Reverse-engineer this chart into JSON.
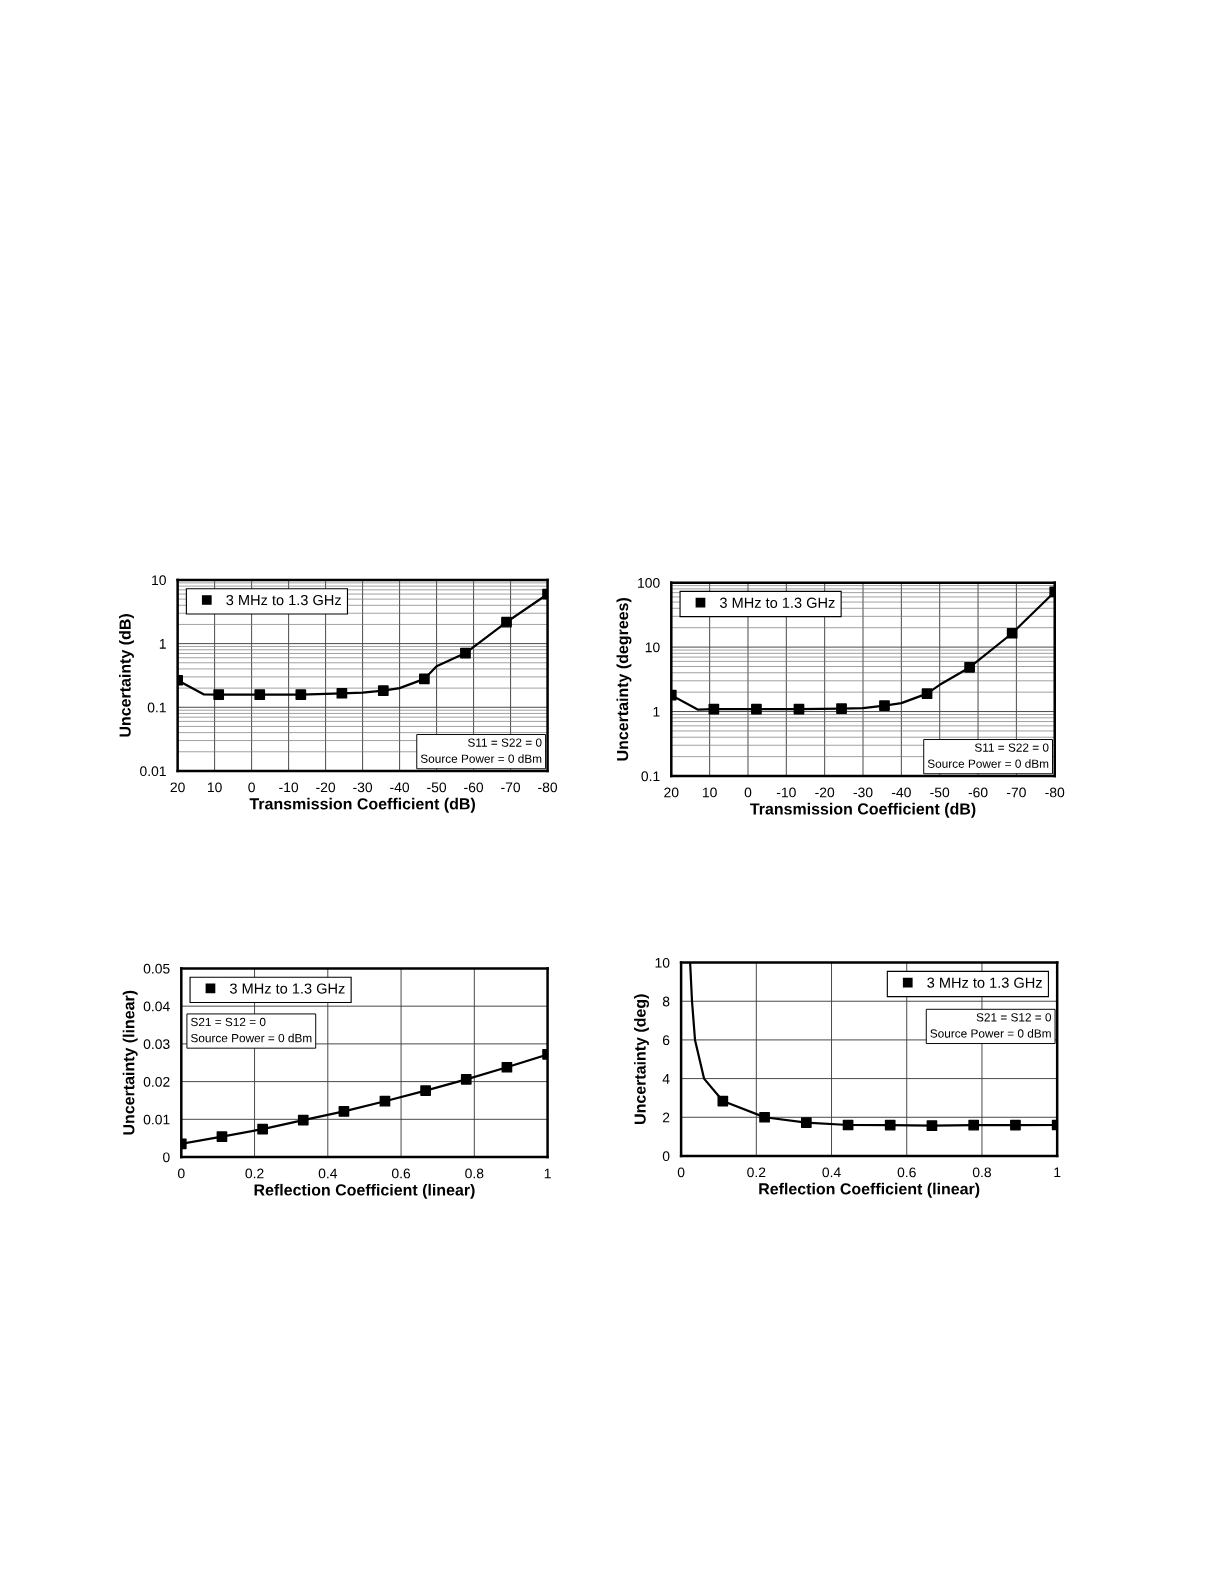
{
  "chart_data": [
    {
      "type": "line",
      "xlabel": "Transmission Coefficient (dB)",
      "ylabel": "Uncertainty (dB)",
      "log": "y",
      "xlim": [
        20,
        -80
      ],
      "xticks": [
        20,
        10,
        0,
        -10,
        -20,
        -30,
        -40,
        -50,
        -60,
        -70,
        -80
      ],
      "ylim": [
        0.01,
        10
      ],
      "yticks": [
        0.01,
        0.1,
        1,
        10
      ],
      "grid": true,
      "legend": "top left",
      "annotations": [
        "S11 = S22 = 0",
        "Source Power = 0 dBm"
      ],
      "series": [
        {
          "color": "#000000",
          "marker": "none",
          "x": [
            20,
            13,
            8.9,
            -2.2,
            -13.3,
            -24.4,
            -30,
            -35.6,
            -40,
            -46.7,
            -50,
            -57.8,
            -68.9,
            -80
          ],
          "values": [
            0.266,
            0.16,
            0.158,
            0.158,
            0.158,
            0.166,
            0.17,
            0.183,
            0.2,
            0.279,
            0.44,
            0.71,
            2.17,
            6.0
          ]
        },
        {
          "type": "scatter",
          "name": "3 MHz to 1.3 GHz",
          "color": "#000000",
          "marker": "square",
          "x": [
            20,
            8.9,
            -2.2,
            -13.3,
            -24.4,
            -35.6,
            -46.7,
            -57.8,
            -68.9,
            -80
          ],
          "values": [
            0.266,
            0.158,
            0.158,
            0.158,
            0.166,
            0.183,
            0.279,
            0.71,
            2.17,
            6.0
          ]
        }
      ]
    },
    {
      "type": "line",
      "xlabel": "Transmission Coefficient (dB)",
      "ylabel": "Uncertainty (degrees)",
      "log": "y",
      "xlim": [
        20,
        -80
      ],
      "xticks": [
        20,
        10,
        0,
        -10,
        -20,
        -30,
        -40,
        -50,
        -60,
        -70,
        -80
      ],
      "ylim": [
        0.1,
        100
      ],
      "yticks": [
        0.1,
        1,
        10,
        100
      ],
      "grid": true,
      "legend": "top left",
      "annotations": [
        "S11 = S22 = 0",
        "Source Power = 0 dBm"
      ],
      "series": [
        {
          "color": "#000000",
          "marker": "none",
          "x": [
            20,
            13,
            8.9,
            -2.2,
            -13.3,
            -24.4,
            -30,
            -35.6,
            -40,
            -46.7,
            -50,
            -57.8,
            -68.9,
            -80
          ],
          "values": [
            1.8,
            1.07,
            1.09,
            1.09,
            1.09,
            1.11,
            1.13,
            1.24,
            1.35,
            1.9,
            2.6,
            4.84,
            16.4,
            72
          ]
        },
        {
          "type": "scatter",
          "name": "3 MHz to 1.3 GHz",
          "color": "#000000",
          "marker": "square",
          "x": [
            20,
            8.9,
            -2.2,
            -13.3,
            -24.4,
            -35.6,
            -46.7,
            -57.8,
            -68.9,
            -80
          ],
          "values": [
            1.8,
            1.09,
            1.09,
            1.09,
            1.11,
            1.24,
            1.9,
            4.84,
            16.4,
            72
          ]
        }
      ]
    },
    {
      "type": "line",
      "xlabel": "Reflection Coefficient (linear)",
      "ylabel": "Uncertainty (linear)",
      "xlim": [
        0,
        1
      ],
      "xticks": [
        0,
        0.2,
        0.4,
        0.6,
        0.8,
        1
      ],
      "ylim": [
        0,
        0.05
      ],
      "yticks": [
        0,
        0.01,
        0.02,
        0.03,
        0.04,
        0.05
      ],
      "grid": true,
      "legend": "top left",
      "annotations": [
        "S21 = S12 = 0",
        "Source Power = 0 dBm"
      ],
      "series": [
        {
          "color": "#000000",
          "marker": "none",
          "x": [
            0,
            0.111,
            0.222,
            0.333,
            0.444,
            0.556,
            0.667,
            0.778,
            0.889,
            1
          ],
          "values": [
            0.0035,
            0.0054,
            0.0074,
            0.0098,
            0.0121,
            0.0148,
            0.0176,
            0.0206,
            0.0238,
            0.0272
          ]
        },
        {
          "type": "scatter",
          "name": "3 MHz to 1.3 GHz",
          "color": "#000000",
          "marker": "square",
          "x": [
            0,
            0.111,
            0.222,
            0.333,
            0.444,
            0.556,
            0.667,
            0.778,
            0.889,
            1
          ],
          "values": [
            0.0035,
            0.0054,
            0.0074,
            0.0098,
            0.0121,
            0.0148,
            0.0176,
            0.0206,
            0.0238,
            0.0272
          ]
        }
      ]
    },
    {
      "type": "line",
      "xlabel": "Reflection Coefficient (linear)",
      "ylabel": "Uncertainty (deg)",
      "xlim": [
        0,
        1
      ],
      "xticks": [
        0,
        0.2,
        0.4,
        0.6,
        0.8,
        1
      ],
      "ylim": [
        0,
        10
      ],
      "yticks": [
        0,
        2,
        4,
        6,
        8,
        10
      ],
      "grid": true,
      "legend": "top right",
      "annotations": [
        "S21 = S12 = 0",
        "Source Power = 0 dBm"
      ],
      "series": [
        {
          "color": "#000000",
          "marker": "none",
          "x": [
            0.024,
            0.029,
            0.037,
            0.061,
            0.111,
            0.222,
            0.333,
            0.444,
            0.556,
            0.667,
            0.778,
            0.889,
            1
          ],
          "values": [
            10,
            8,
            6,
            4,
            2.84,
            2.0,
            1.72,
            1.6,
            1.59,
            1.57,
            1.59,
            1.59,
            1.6
          ]
        },
        {
          "type": "scatter",
          "name": "3 MHz to 1.3 GHz",
          "color": "#000000",
          "marker": "square",
          "x": [
            0.111,
            0.222,
            0.333,
            0.444,
            0.556,
            0.667,
            0.778,
            0.889,
            1
          ],
          "values": [
            2.84,
            2.0,
            1.72,
            1.6,
            1.59,
            1.57,
            1.59,
            1.59,
            1.6
          ]
        }
      ]
    }
  ]
}
